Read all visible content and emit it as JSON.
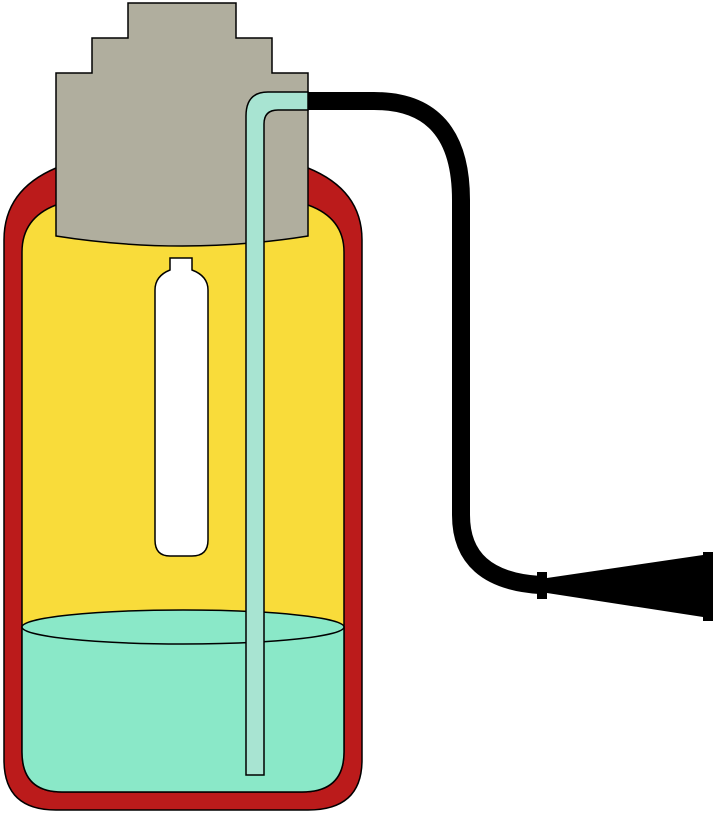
{
  "diagram": {
    "description_visible_text": "",
    "colors": {
      "outer_wall": "#BB1B1B",
      "inner_liquid_space": "#F9DC3A",
      "liquid": "#8AE8C8",
      "cap": "#B0AE9E",
      "tube": "#A8E4D2",
      "hose": "#000000",
      "inner_vessel": "#FFFFFF",
      "outline": "#000000"
    },
    "parts": [
      "outer-wall",
      "inner-chamber",
      "liquid",
      "stepped-cap",
      "inner-vial",
      "siphon-tube",
      "hose",
      "nozzle"
    ]
  }
}
